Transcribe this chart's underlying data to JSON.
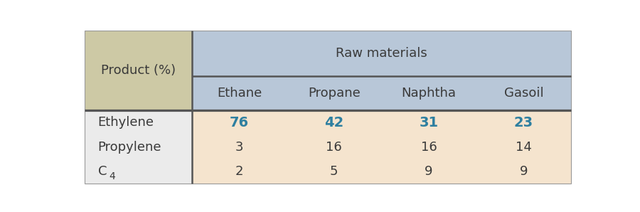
{
  "header_col_label": "Product (%)",
  "header_span_label": "Raw materials",
  "col_headers": [
    "Ethane",
    "Propane",
    "Naphtha",
    "Gasoil"
  ],
  "rows": [
    {
      "label": "Ethylene",
      "values": [
        "76",
        "42",
        "31",
        "23"
      ],
      "bold": true
    },
    {
      "label": "Propylene",
      "values": [
        "3",
        "16",
        "16",
        "14"
      ],
      "bold": false
    },
    {
      "label": "C4",
      "values": [
        "2",
        "5",
        "9",
        "9"
      ],
      "bold": false
    }
  ],
  "header_bg_color": "#b8c7d8",
  "header_left_bg_color": "#cdc9a5",
  "data_bg_color": "#f5e4ce",
  "data_left_bg_color": "#ebebeb",
  "highlight_color": "#2e7fa0",
  "normal_text_color": "#3a3a3a",
  "header_text_color": "#3a3a3a",
  "thick_line_color": "#555555",
  "thin_line_color": "#999999",
  "fig_bg_color": "#ffffff",
  "font_size_header": 13,
  "font_size_data": 13,
  "font_size_bold": 14
}
